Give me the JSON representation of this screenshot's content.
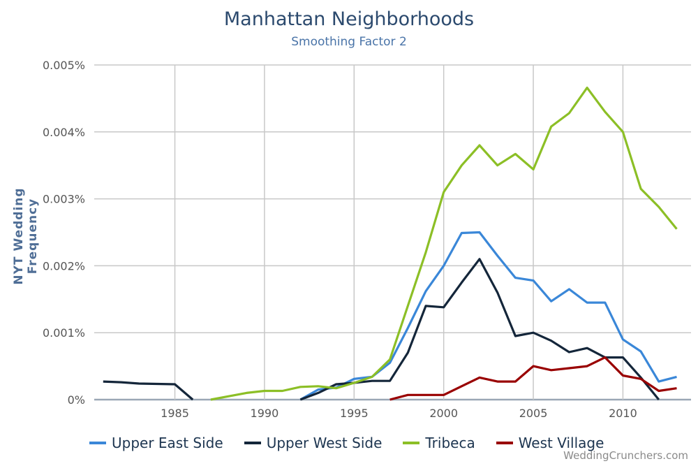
{
  "chart_data": {
    "type": "line",
    "title": "Manhattan Neighborhoods",
    "subtitle": "Smoothing Factor 2",
    "xlabel": "",
    "ylabel": "NYT Wedding Frequency",
    "x": [
      1981,
      1982,
      1983,
      1984,
      1985,
      1986,
      1987,
      1988,
      1989,
      1990,
      1991,
      1992,
      1993,
      1994,
      1995,
      1996,
      1997,
      1998,
      1999,
      2000,
      2001,
      2002,
      2003,
      2004,
      2005,
      2006,
      2007,
      2008,
      2009,
      2010,
      2011,
      2012,
      2013
    ],
    "xlim": [
      1980.5,
      2013.8
    ],
    "ylim": [
      0,
      0.005
    ],
    "x_ticks": [
      "1985",
      "1990",
      "1995",
      "2000",
      "2005",
      "2010"
    ],
    "y_ticks": [
      "0%",
      "0.001%",
      "0.002%",
      "0.003%",
      "0.004%",
      "0.005%"
    ],
    "grid": true,
    "legend_position": "bottom",
    "series": [
      {
        "name": "Upper East Side",
        "color": "#3a87d8",
        "values": [
          null,
          null,
          null,
          null,
          null,
          null,
          null,
          null,
          null,
          null,
          null,
          0,
          0.00015,
          0.00018,
          0.00031,
          0.00034,
          0.00055,
          0.00107,
          0.00162,
          0.002,
          0.00249,
          0.0025,
          0.00215,
          0.00182,
          0.00178,
          0.00147,
          0.00165,
          0.00145,
          0.00145,
          0.0009,
          0.00072,
          0.00027,
          0.00034
        ]
      },
      {
        "name": "Upper West Side",
        "color": "#14263a",
        "values": [
          0.00027,
          0.00026,
          0.00024,
          0.000235,
          0.00023,
          0,
          null,
          null,
          null,
          null,
          null,
          0,
          0.0001,
          0.00023,
          0.00025,
          0.00028,
          0.00028,
          0.0007,
          0.0014,
          0.00138,
          0.00175,
          0.0021,
          0.0016,
          0.00095,
          0.001,
          0.00088,
          0.00071,
          0.00077,
          0.00063,
          0.00063,
          0.00033,
          0,
          null
        ]
      },
      {
        "name": "Tribeca",
        "color": "#8cbf26",
        "values": [
          null,
          null,
          null,
          null,
          null,
          null,
          0,
          5e-05,
          0.0001,
          0.00013,
          0.00013,
          0.00019,
          0.0002,
          0.00017,
          0.00025,
          0.00034,
          0.0006,
          0.0014,
          0.0022,
          0.0031,
          0.0035,
          0.0038,
          0.0035,
          0.00367,
          0.00344,
          0.00408,
          0.00428,
          0.00466,
          0.0043,
          0.004,
          0.00315,
          0.00288,
          0.00255
        ]
      },
      {
        "name": "West Village",
        "color": "#990000",
        "values": [
          null,
          null,
          null,
          null,
          null,
          null,
          null,
          null,
          null,
          null,
          null,
          null,
          null,
          null,
          null,
          null,
          0,
          7e-05,
          7e-05,
          7e-05,
          0.0002,
          0.00033,
          0.00027,
          0.00027,
          0.0005,
          0.00044,
          0.00047,
          0.0005,
          0.00063,
          0.00036,
          0.00031,
          0.00013,
          0.00017
        ]
      }
    ]
  },
  "watermark": "WeddingCrunchers.com"
}
